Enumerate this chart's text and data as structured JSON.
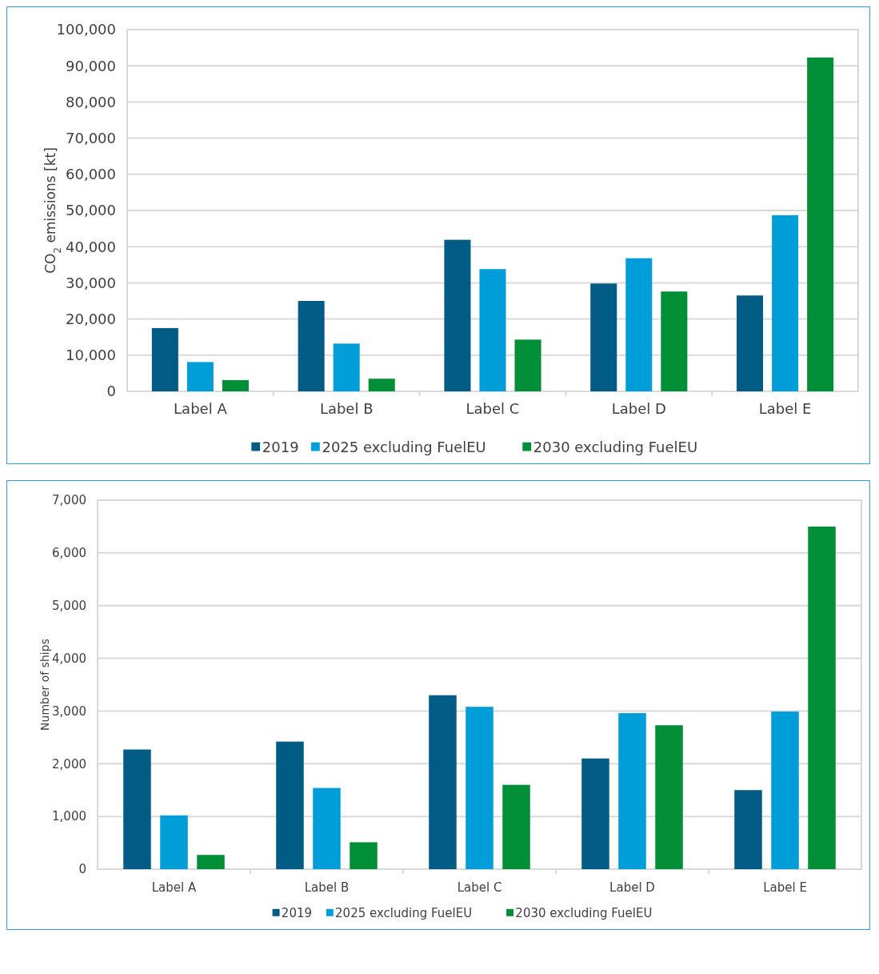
{
  "chart_data": [
    {
      "type": "bar",
      "categories": [
        "Label A",
        "Label B",
        "Label C",
        "Label D",
        "Label E"
      ],
      "ylabel": "CO$_{2}$ emissions [kt]",
      "ylim": [
        0,
        100000
      ],
      "yticks": [
        {
          "value": 0,
          "label": "0"
        },
        {
          "value": 10000,
          "label": "10,000"
        },
        {
          "value": 20000,
          "label": "20,000"
        },
        {
          "value": 30000,
          "label": "30,000"
        },
        {
          "value": 40000,
          "label": "40,000"
        },
        {
          "value": 50000,
          "label": "50,000"
        },
        {
          "value": 60000,
          "label": "60,000"
        },
        {
          "value": 70000,
          "label": "70,000"
        },
        {
          "value": 80000,
          "label": "80,000"
        },
        {
          "value": 90000,
          "label": "90,000"
        },
        {
          "value": 100000,
          "label": "100,000"
        }
      ],
      "grid": "y",
      "legend": "bottom",
      "series": [
        {
          "name": "2019",
          "color": "#005c84",
          "values": [
            17500,
            25000,
            41900,
            29800,
            26500
          ]
        },
        {
          "name": "2025 excluding FuelEU",
          "color": "#009ed9",
          "values": [
            8100,
            13200,
            33800,
            36800,
            48700
          ]
        },
        {
          "name": "2030 excluding FuelEU",
          "color": "#008f36",
          "values": [
            3100,
            3500,
            14300,
            27600,
            92300
          ]
        }
      ]
    },
    {
      "type": "bar",
      "categories": [
        "Label A",
        "Label B",
        "Label C",
        "Label D",
        "Label E"
      ],
      "ylabel": "Number of ships",
      "ylim": [
        0,
        7000
      ],
      "yticks": [
        {
          "value": 0,
          "label": "0"
        },
        {
          "value": 1000,
          "label": "1,000"
        },
        {
          "value": 2000,
          "label": "2,000"
        },
        {
          "value": 3000,
          "label": "3,000"
        },
        {
          "value": 4000,
          "label": "4,000"
        },
        {
          "value": 5000,
          "label": "5,000"
        },
        {
          "value": 6000,
          "label": "6,000"
        },
        {
          "value": 7000,
          "label": "7,000"
        }
      ],
      "grid": "y",
      "legend": "bottom",
      "series": [
        {
          "name": "2019",
          "color": "#005c84",
          "values": [
            2270,
            2420,
            3300,
            2100,
            1500
          ]
        },
        {
          "name": "2025 excluding FuelEU",
          "color": "#009ed9",
          "values": [
            1020,
            1540,
            3080,
            2960,
            2990
          ]
        },
        {
          "name": "2030 excluding FuelEU",
          "color": "#008f36",
          "values": [
            270,
            510,
            1600,
            2730,
            6500
          ]
        }
      ]
    }
  ]
}
